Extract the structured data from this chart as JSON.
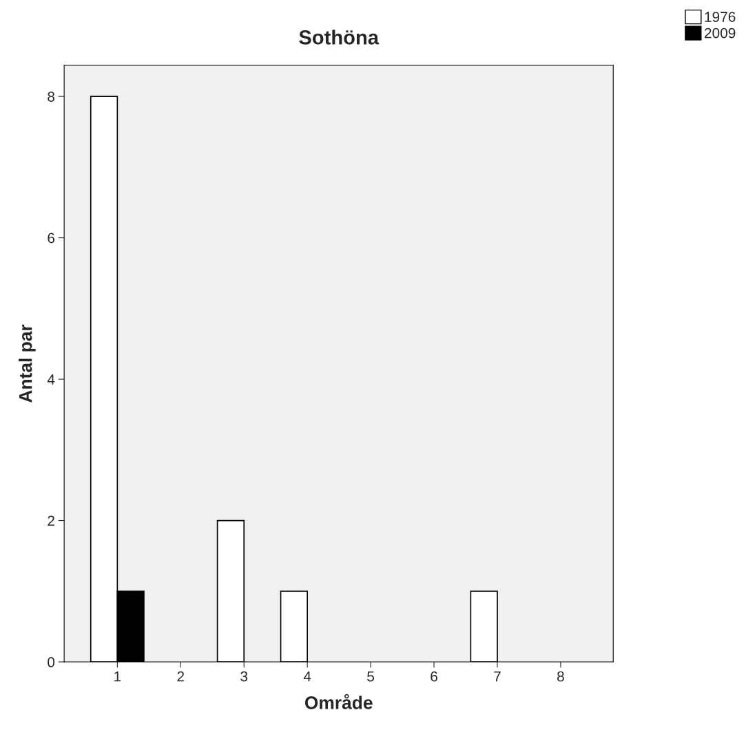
{
  "chart_data": {
    "type": "bar",
    "title": "Sothöna",
    "xlabel": "Område",
    "ylabel": "Antal par",
    "categories": [
      "1",
      "2",
      "3",
      "4",
      "5",
      "6",
      "7",
      "8"
    ],
    "series": [
      {
        "name": "1976",
        "color": "#ffffff",
        "values": [
          8,
          0,
          2,
          1,
          0,
          0,
          1,
          0
        ]
      },
      {
        "name": "2009",
        "color": "#000000",
        "values": [
          1,
          0,
          0,
          0,
          0,
          0,
          0,
          0
        ]
      }
    ],
    "ylim": [
      0,
      8.44
    ],
    "yticks": [
      0,
      2,
      4,
      6,
      8
    ],
    "grid": false,
    "legend": "top right"
  }
}
